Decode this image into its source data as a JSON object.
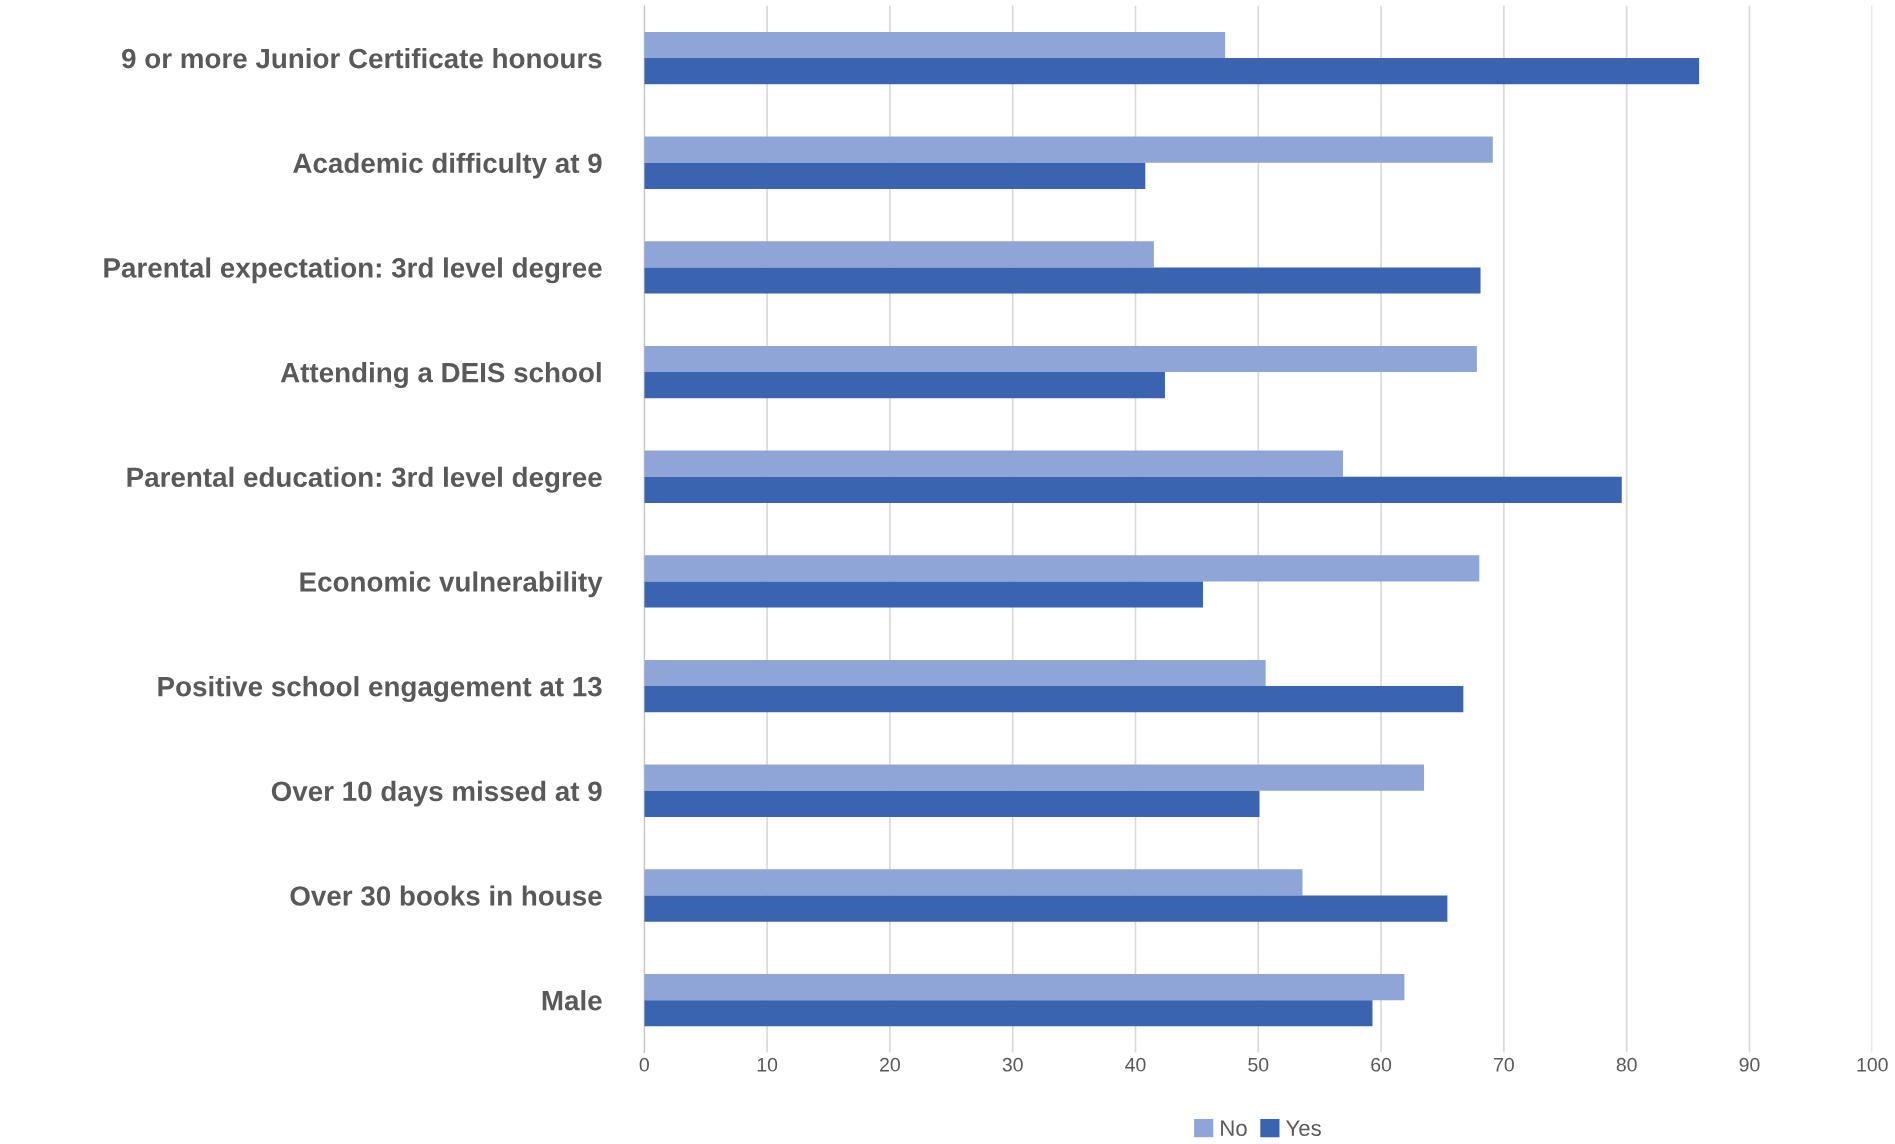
{
  "chart_data": {
    "type": "bar",
    "orientation": "horizontal",
    "categories": [
      "9 or more Junior Certificate honours",
      "Academic difficulty at 9",
      "Parental expectation: 3rd level degree",
      "Attending a DEIS school",
      "Parental education: 3rd level degree",
      "Economic vulnerability",
      "Positive school engagement at 13",
      "Over 10 days missed at 9",
      "Over 30 books in house",
      "Male"
    ],
    "series": [
      {
        "name": "No",
        "color": "#8fa5d8",
        "values": [
          47.3,
          69.1,
          41.5,
          67.8,
          56.9,
          68.0,
          50.6,
          63.5,
          53.6,
          61.9
        ]
      },
      {
        "name": "Yes",
        "color": "#3a64b0",
        "values": [
          85.9,
          40.8,
          68.1,
          42.4,
          79.6,
          45.5,
          66.7,
          50.1,
          65.4,
          59.3
        ]
      }
    ],
    "xlim": [
      0,
      100
    ],
    "xticks": [
      0,
      10,
      20,
      30,
      40,
      50,
      60,
      70,
      80,
      90,
      100
    ],
    "grid": "x",
    "legend": "bottom"
  }
}
